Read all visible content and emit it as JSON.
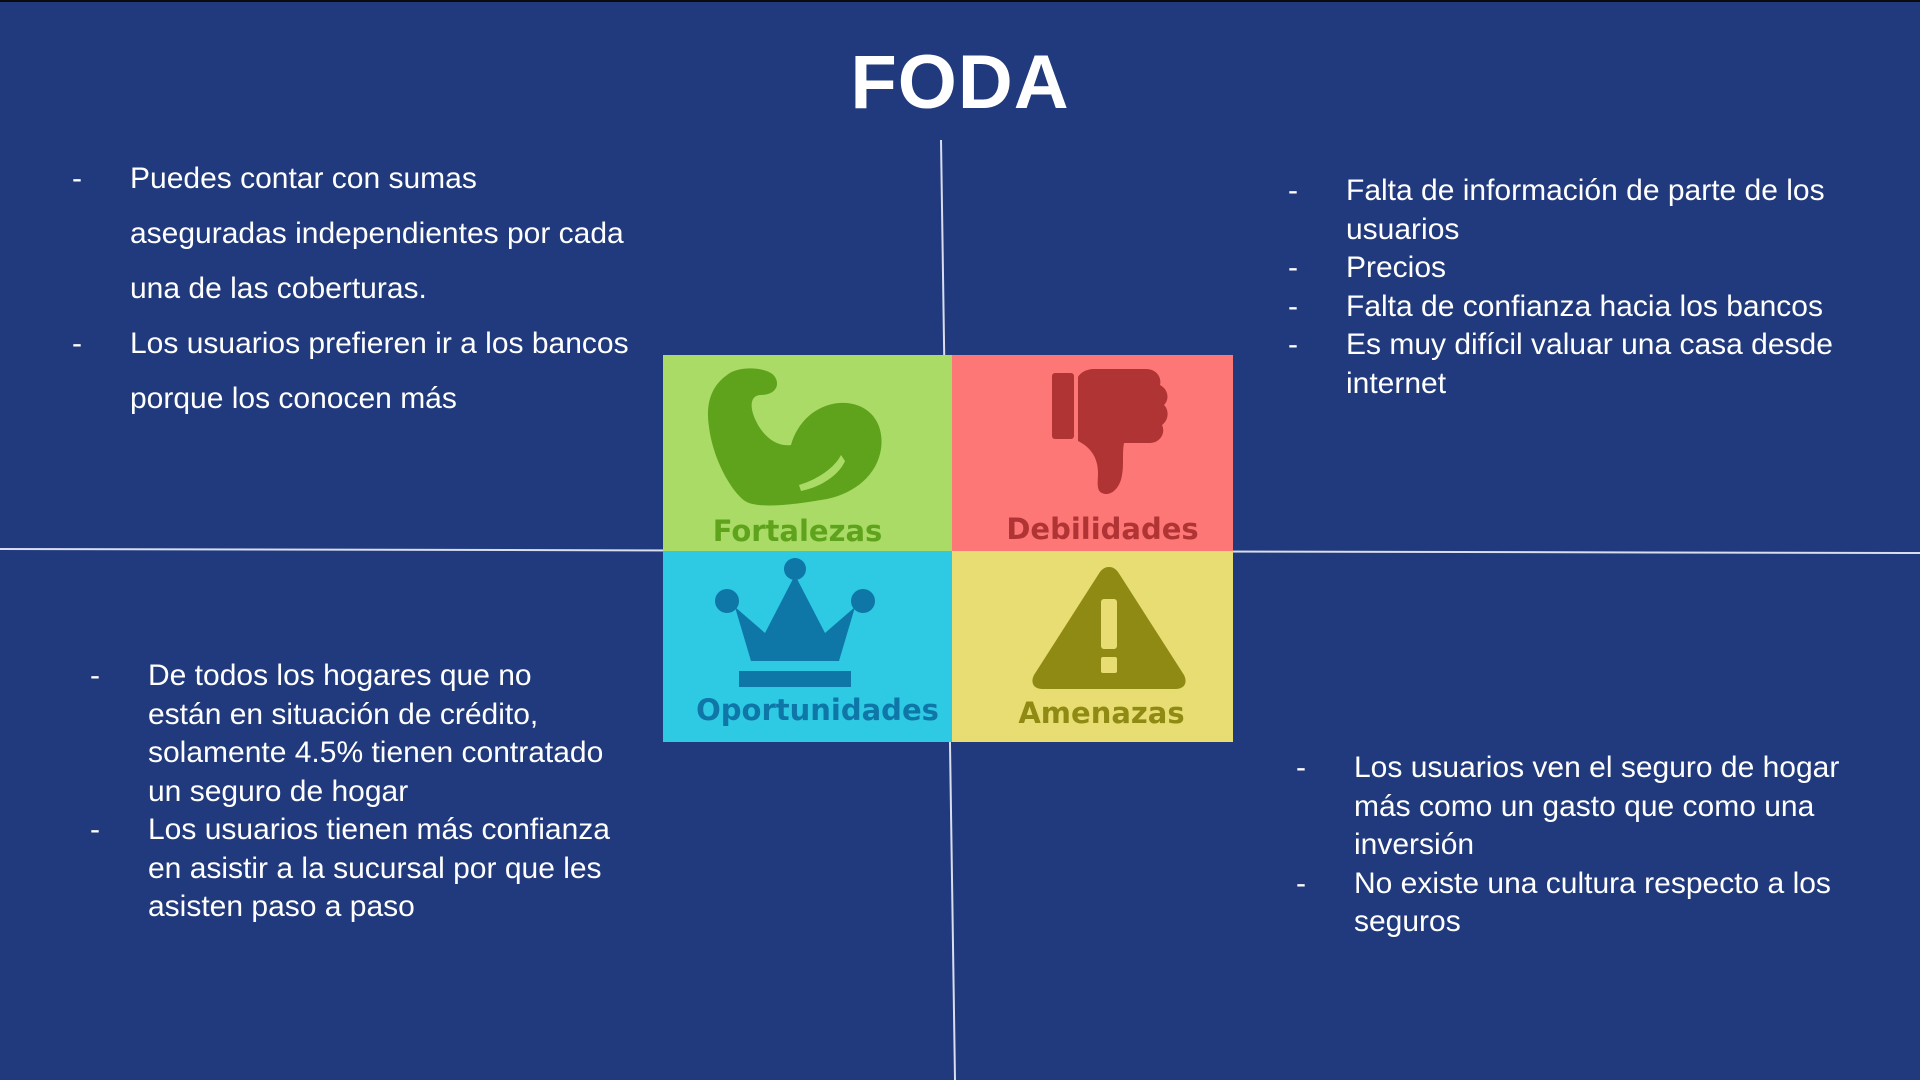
{
  "slide": {
    "title": "FODA",
    "background_color": "#213a7d",
    "axis_color": "#d8deee"
  },
  "matrix": {
    "fortalezas": {
      "label": "Fortalezas",
      "icon": "flexed-arm-icon",
      "color": "#a9db66",
      "icon_color": "#5fa31c"
    },
    "debilidades": {
      "label": "Debilidades",
      "icon": "thumbs-down-icon",
      "color": "#fd7777",
      "icon_color": "#b03434"
    },
    "oportunidades": {
      "label": "Oportunidades",
      "icon": "crown-icon",
      "color": "#2ec9e3",
      "icon_color": "#0f76a8"
    },
    "amenazas": {
      "label": "Amenazas",
      "icon": "warning-triangle-icon",
      "color": "#e8dd72",
      "icon_color": "#8e8a14"
    }
  },
  "bullet_marker": "-",
  "fortalezas_points": [
    "Puedes contar con sumas aseguradas independientes por cada una de las coberturas.",
    "Los usuarios prefieren ir a los bancos porque los conocen más"
  ],
  "debilidades_points": [
    "Falta de información de parte de los usuarios",
    "Precios",
    "Falta de confianza hacia los bancos",
    "Es muy difícil valuar una casa desde internet"
  ],
  "oportunidades_points": [
    "De todos los hogares que no están en situación de crédito, solamente 4.5% tienen contratado un seguro de hogar",
    "Los usuarios tienen más confianza en asistir a la sucursal por que les asisten paso a paso"
  ],
  "amenazas_points": [
    "Los usuarios ven el seguro de hogar más como un gasto que como una inversión",
    "No existe una cultura respecto a los seguros"
  ]
}
